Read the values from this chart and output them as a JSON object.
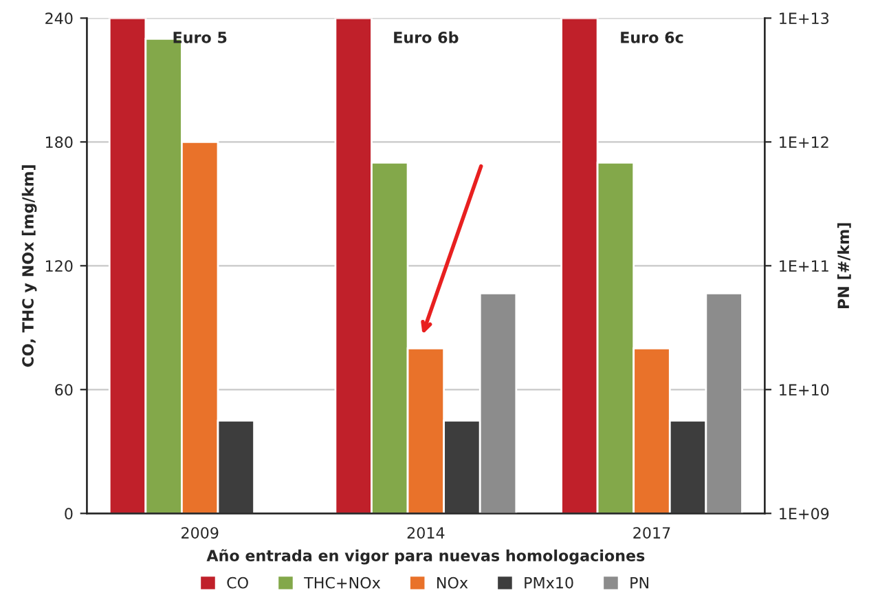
{
  "chart_data": {
    "type": "bar",
    "categories": [
      "2009",
      "2014",
      "2017"
    ],
    "xlabel": "Año entrada en vigor para nuevas homologaciones",
    "ylabel": "CO, THC y NOx [mg/km]",
    "y2label": "PN [#/km]",
    "series": [
      {
        "name": "CO",
        "color": "#c0202a",
        "values": [
          240,
          240,
          240
        ]
      },
      {
        "name": "THC+NOx",
        "color": "#83a84a",
        "values": [
          230,
          170,
          170
        ]
      },
      {
        "name": "NOx",
        "color": "#e9722a",
        "values": [
          180,
          80,
          80
        ]
      },
      {
        "name": "PMx10",
        "color": "#3d3d3d",
        "values": [
          45,
          45,
          45
        ]
      },
      {
        "name": "PN",
        "color": "#8c8c8c",
        "axis": "y2",
        "values": [
          null,
          60000000000.0,
          60000000000.0
        ]
      }
    ],
    "ylim": [
      0,
      240
    ],
    "yticks": [
      0,
      60,
      120,
      180,
      240
    ],
    "log": "y2",
    "y2lim": [
      1000000000.0,
      10000000000000.0
    ],
    "y2ticks": [
      {
        "value": 1000000000.0,
        "label": "1E+09"
      },
      {
        "value": 10000000000.0,
        "label": "1E+10"
      },
      {
        "value": 100000000000.0,
        "label": "1E+11"
      },
      {
        "value": 1000000000000.0,
        "label": "1E+12"
      },
      {
        "value": 10000000000000.0,
        "label": "1E+13"
      }
    ],
    "grid": "y",
    "legend": "bottom",
    "annotations": [
      "Euro 5",
      "Euro 6b",
      "Euro 6c"
    ]
  }
}
